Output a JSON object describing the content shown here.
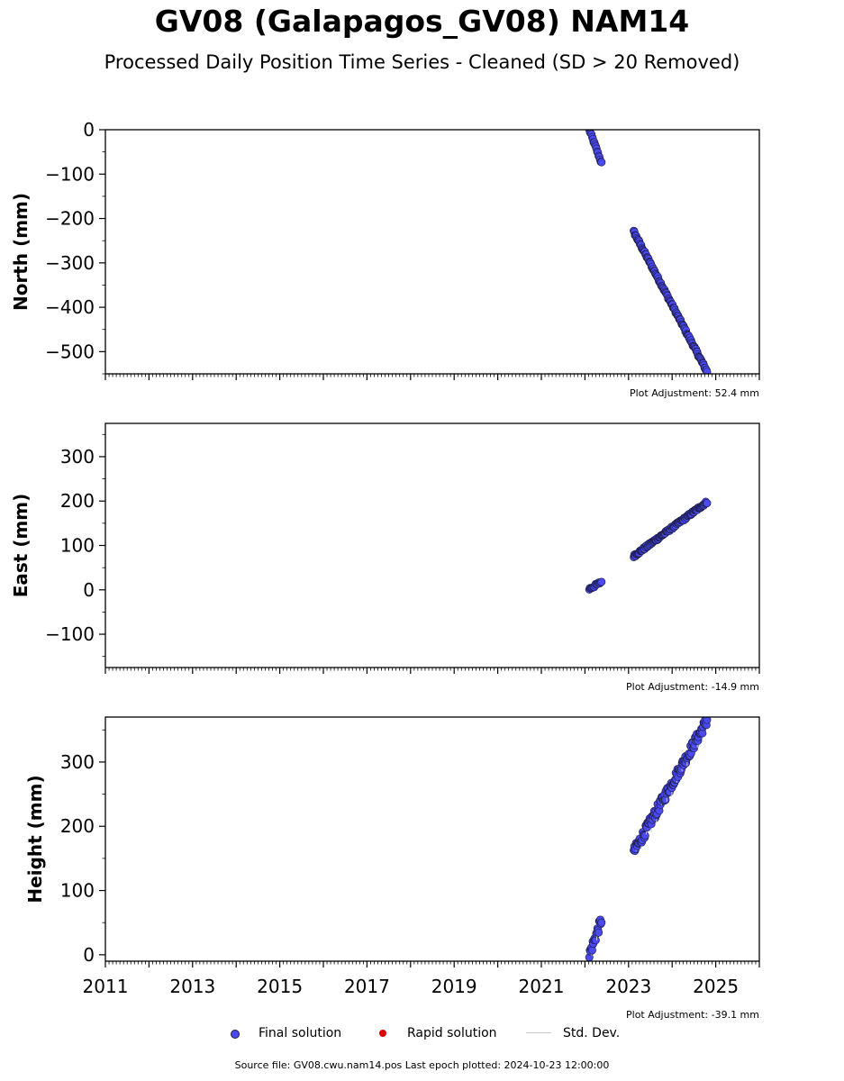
{
  "title": "GV08 (Galapagos_GV08) NAM14",
  "subtitle": "Processed Daily Position Time Series - Cleaned (SD > 20 Removed)",
  "footer": "Source file: GV08.cwu.nam14.pos  Last epoch plotted: 2024-10-23 12:00:00",
  "legend": {
    "final": "Final solution",
    "rapid": "Rapid solution",
    "std": "Std. Dev."
  },
  "colors": {
    "final": "#4a4af0",
    "final_edge": "#1a1a40",
    "rapid": "#dd0000",
    "std": "#c8c8c8"
  },
  "chart_data": [
    {
      "type": "scatter",
      "ylabel": "North (mm)",
      "adjustment": "Plot Adjustment: 52.4 mm",
      "xlim": [
        2011,
        2026
      ],
      "ylim": [
        -550,
        0
      ],
      "yticks": [
        0,
        -100,
        -200,
        -300,
        -400,
        -500
      ],
      "ytick_labels": [
        "0",
        "−100",
        "−200",
        "−300",
        "−400",
        "−500"
      ],
      "segments": [
        {
          "x0": 2022.1,
          "x1": 2022.38,
          "y0": 0,
          "y1": -75,
          "n": 18
        },
        {
          "x0": 2023.12,
          "x1": 2024.8,
          "y0": -230,
          "y1": -545,
          "n": 120
        }
      ]
    },
    {
      "type": "scatter",
      "ylabel": "East (mm)",
      "adjustment": "Plot Adjustment: -14.9 mm",
      "xlim": [
        2011,
        2026
      ],
      "ylim": [
        -175,
        375
      ],
      "yticks": [
        300,
        200,
        100,
        0,
        -100
      ],
      "ytick_labels": [
        "300",
        "200",
        "100",
        "0",
        "−100"
      ],
      "segments": [
        {
          "x0": 2022.1,
          "x1": 2022.38,
          "y0": 2,
          "y1": 18,
          "n": 16
        },
        {
          "x0": 2023.12,
          "x1": 2024.8,
          "y0": 76,
          "y1": 198,
          "n": 120
        }
      ]
    },
    {
      "type": "scatter",
      "ylabel": "Height (mm)",
      "adjustment": "Plot Adjustment: -39.1 mm",
      "xlim": [
        2011,
        2026
      ],
      "ylim": [
        -10,
        370
      ],
      "yticks": [
        300,
        200,
        100,
        0
      ],
      "ytick_labels": [
        "300",
        "200",
        "100",
        "0"
      ],
      "xticks": [
        2011,
        2013,
        2015,
        2017,
        2019,
        2021,
        2023,
        2025
      ],
      "xtick_labels": [
        "2011",
        "2013",
        "2015",
        "2017",
        "2019",
        "2021",
        "2023",
        "2025"
      ],
      "segments": [
        {
          "x0": 2022.1,
          "x1": 2022.38,
          "y0": 0,
          "y1": 55,
          "n": 22
        },
        {
          "x0": 2023.12,
          "x1": 2024.8,
          "y0": 160,
          "y1": 365,
          "n": 130
        }
      ]
    }
  ]
}
